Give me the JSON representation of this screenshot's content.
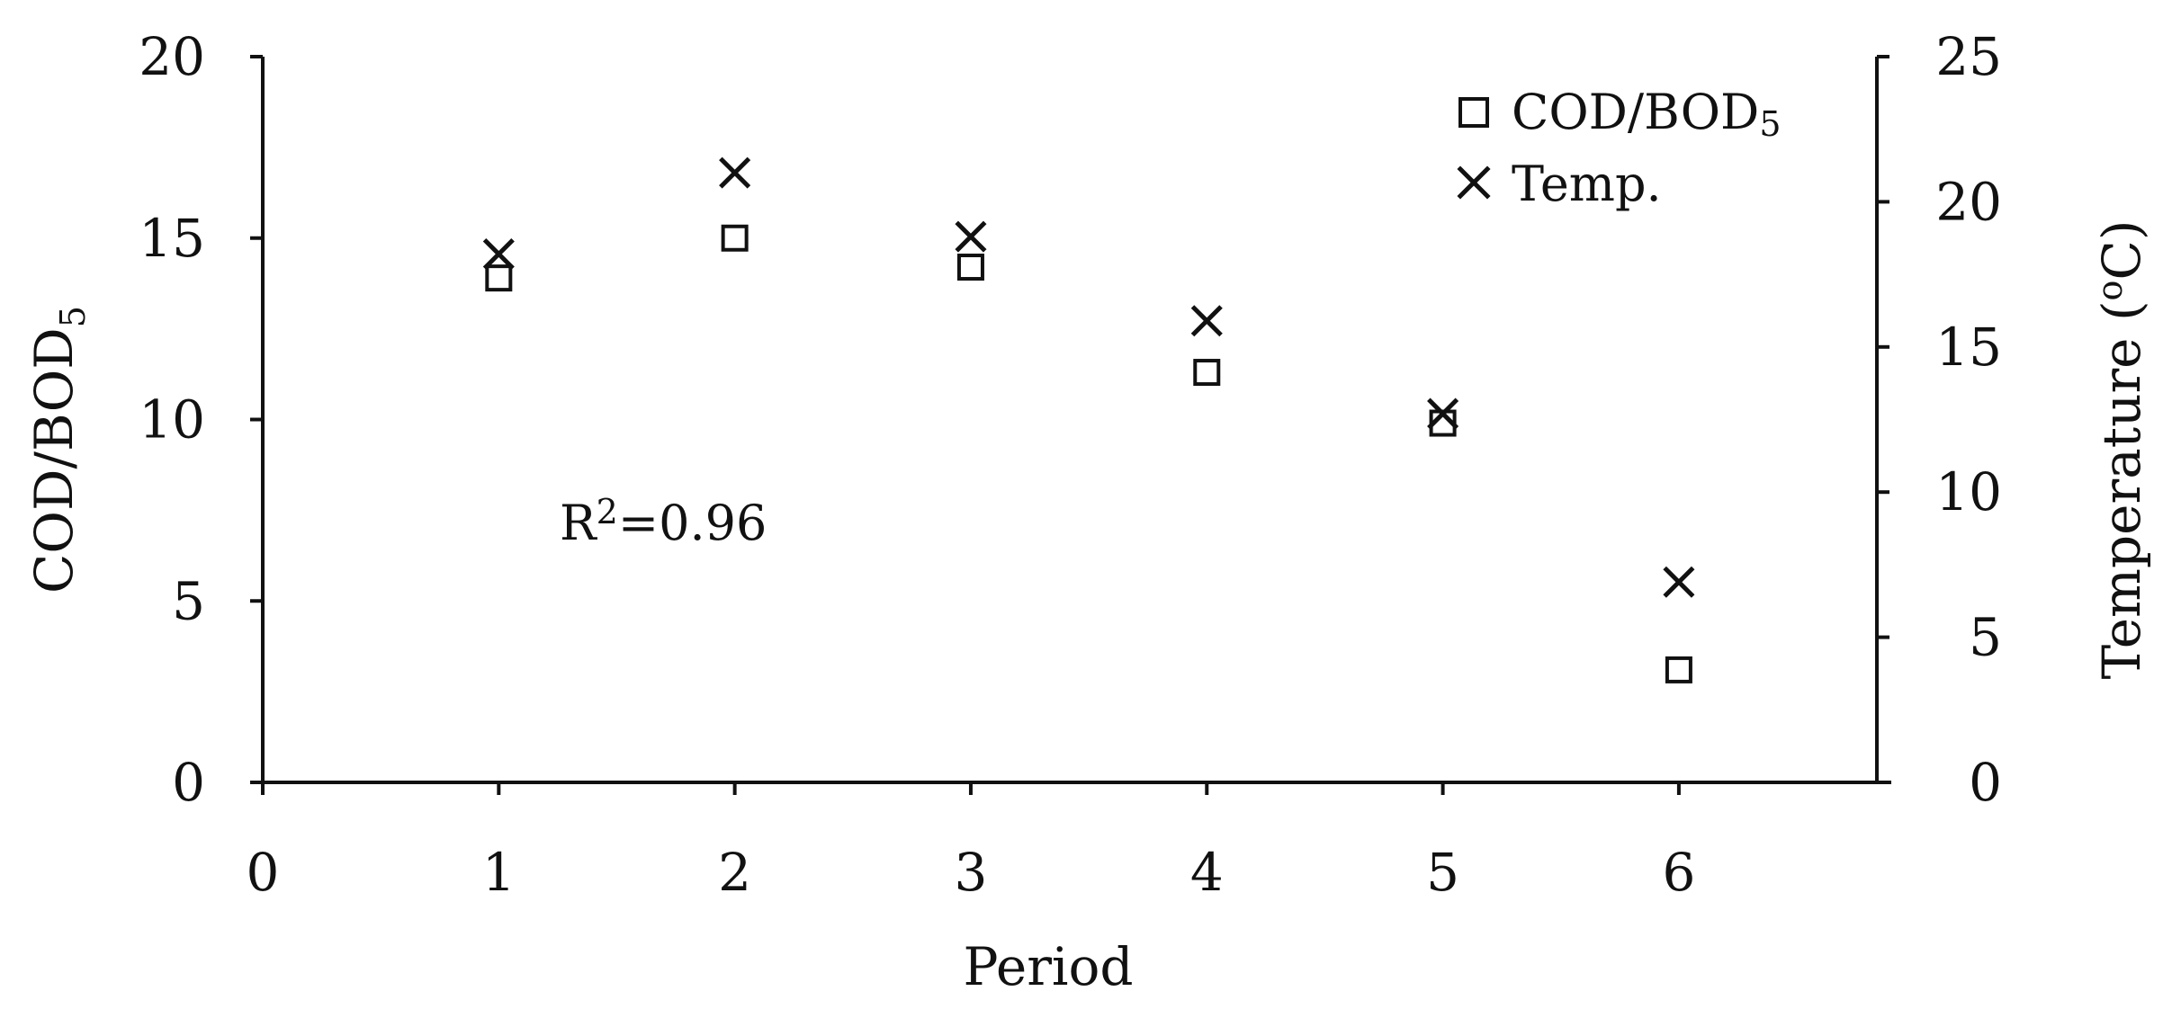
{
  "chart_data": {
    "type": "scatter",
    "xlabel": "Period",
    "ylabel": "COD/BOD",
    "ylabel_sub": "5",
    "y2label": "Temperature (",
    "y2label_sup": "o",
    "y2label_end": "C)",
    "xlim": [
      0,
      6.9
    ],
    "ylim": [
      0,
      20
    ],
    "y2lim": [
      0,
      25
    ],
    "xticks": [
      "0",
      "1",
      "2",
      "3",
      "4",
      "5",
      "6"
    ],
    "yticks": [
      "0",
      "5",
      "10",
      "15",
      "20"
    ],
    "y2ticks": [
      "0",
      "5",
      "10",
      "15",
      "20",
      "25"
    ],
    "grid": false,
    "legend_position": "top-right",
    "series": [
      {
        "name": "COD/BOD",
        "name_sub": "5",
        "marker": "square",
        "axis": "left",
        "x": [
          1,
          2,
          3,
          4,
          5,
          6
        ],
        "y": [
          13.9,
          15.0,
          14.2,
          11.3,
          9.9,
          3.1
        ]
      },
      {
        "name": "Temp.",
        "marker": "x",
        "axis": "right",
        "x": [
          1,
          2,
          3,
          4,
          5,
          6
        ],
        "y": [
          18.2,
          21.0,
          18.8,
          15.9,
          12.7,
          6.9
        ]
      }
    ],
    "annotation": {
      "prefix": "R",
      "sup": "2",
      "suffix": "=0.96"
    }
  }
}
